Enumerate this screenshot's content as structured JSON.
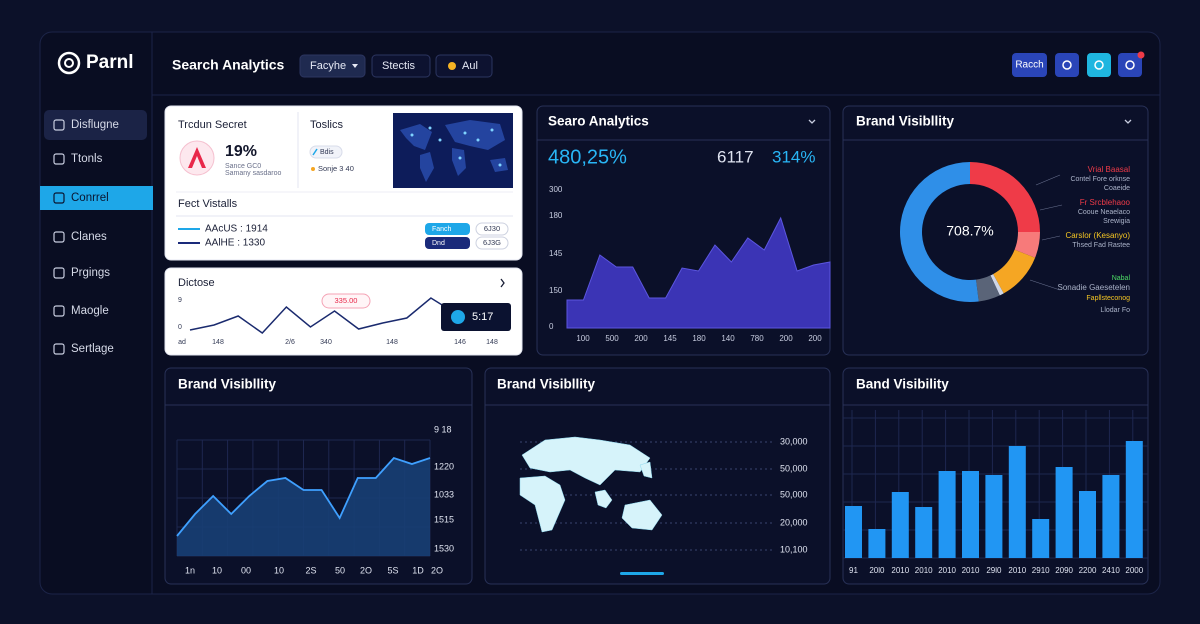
{
  "sidebar": {
    "logo": "Parnl",
    "items": [
      "Disflugne",
      "Ttonls",
      "Conrrel",
      "Clanes",
      "Prgings",
      "Maogle",
      "Sertlage"
    ]
  },
  "header": {
    "title": "Search Analytics",
    "filters": [
      "Facyhe",
      "Stectis",
      "Aul"
    ],
    "action": "Racch"
  },
  "summary": {
    "title": "Trcdun Secret",
    "percent": "19%",
    "lines": [
      "Sance GC0",
      "Samany sasdaroo"
    ],
    "topics_title": "Toslics",
    "chips": [
      "Bdis",
      "Sonje 3 40"
    ],
    "facts_title": "Fect Vistalls",
    "facts": [
      {
        "label": "AAcUS : 1914",
        "tag": "Fanch",
        "pill": "6J30",
        "color": "#1ea7e8"
      },
      {
        "label": "AAlHE : 1330",
        "tag": "Dnd",
        "pill": "6J3G",
        "color": "#1a2a7a"
      }
    ]
  },
  "dictose": {
    "title": "Dictose",
    "badge": "335.00",
    "stat": "5:17",
    "y_labels": [
      "9",
      "0"
    ],
    "x_labels": [
      "ad",
      "148",
      "2/6",
      "340",
      "148",
      "146",
      "148"
    ],
    "color": "#1a2a6e",
    "values": [
      3,
      8,
      17,
      0,
      26,
      6,
      22,
      4,
      10,
      15,
      35,
      20
    ]
  },
  "search_chart": {
    "title": "Searo Analytics",
    "big": "480,25%",
    "mid": "6117",
    "right": "314%",
    "y_labels": [
      "300",
      "180",
      "145",
      "150",
      "0"
    ],
    "x_labels": [
      "100",
      "500",
      "200",
      "145",
      "180",
      "140",
      "780",
      "200",
      "200"
    ],
    "color": "#3b34b5",
    "values": [
      28,
      28,
      73,
      61,
      61,
      30,
      30,
      60,
      57,
      83,
      66,
      90,
      78,
      110,
      57,
      63,
      66
    ]
  },
  "donut": {
    "title": "Brand Visibllity",
    "center": "708.7%",
    "segments": [
      {
        "color": "#ef3b48",
        "value": 25
      },
      {
        "color": "#f77a7a",
        "value": 6
      },
      {
        "color": "#f5a623",
        "value": 11
      },
      {
        "color": "#cfd6e6",
        "value": 1
      },
      {
        "color": "#5a6478",
        "value": 5
      },
      {
        "color": "#2f8fe8",
        "value": 52
      }
    ],
    "legend": [
      {
        "text": "Vrial Baasal",
        "color": "#ef3b48"
      },
      {
        "text": "Contel Fore orknse",
        "color": "#aab2c8"
      },
      {
        "text": "Coaeide",
        "color": "#aab2c8"
      },
      {
        "text": "Fr Srcblehaoo",
        "color": "#ef3b48"
      },
      {
        "text": "Cooue Neaelaco",
        "color": "#aab2c8"
      },
      {
        "text": "Srewigia",
        "color": "#aab2c8"
      },
      {
        "text": "Carslor (Kesanyo)",
        "color": "#f5c623"
      },
      {
        "text": "Thsed Fad Rastee",
        "color": "#aab2c8"
      },
      {
        "text": "Nabal",
        "color": "#4cd964"
      },
      {
        "text": "Sonadie Gaesetelen",
        "color": "#aab2c8"
      },
      {
        "text": "Fapllsteconog",
        "color": "#f5c623"
      },
      {
        "text": "Llodar Fo",
        "color": "#aab2c8"
      }
    ]
  },
  "area_chart": {
    "title": "Brand Visibllity",
    "y_labels": [
      "9 18",
      "1220",
      "1033",
      "1515",
      "1530"
    ],
    "x_labels": [
      "1n",
      "10",
      "00",
      "10",
      "2S",
      "50",
      "2O",
      "5S",
      "1D",
      "2O"
    ],
    "color": "#3fa0ff",
    "values": [
      20,
      42,
      60,
      42,
      60,
      75,
      78,
      66,
      66,
      38,
      78,
      78,
      98,
      92,
      98
    ]
  },
  "map_panel": {
    "title": "Brand Visibllity",
    "y_labels": [
      "30,000",
      "50,000",
      "50,000",
      "20,000",
      "10,100"
    ]
  },
  "bar_chart": {
    "title": "Band Visibility",
    "color": "#2196f3",
    "x_labels": [
      "91",
      "20l0",
      "2010",
      "2010",
      "2010",
      "2010",
      "29l0",
      "2010",
      "2910",
      "2090",
      "2200",
      "2410",
      "2000"
    ],
    "values": [
      52,
      29,
      66,
      51,
      87,
      87,
      83,
      112,
      39,
      91,
      67,
      83,
      117
    ]
  }
}
